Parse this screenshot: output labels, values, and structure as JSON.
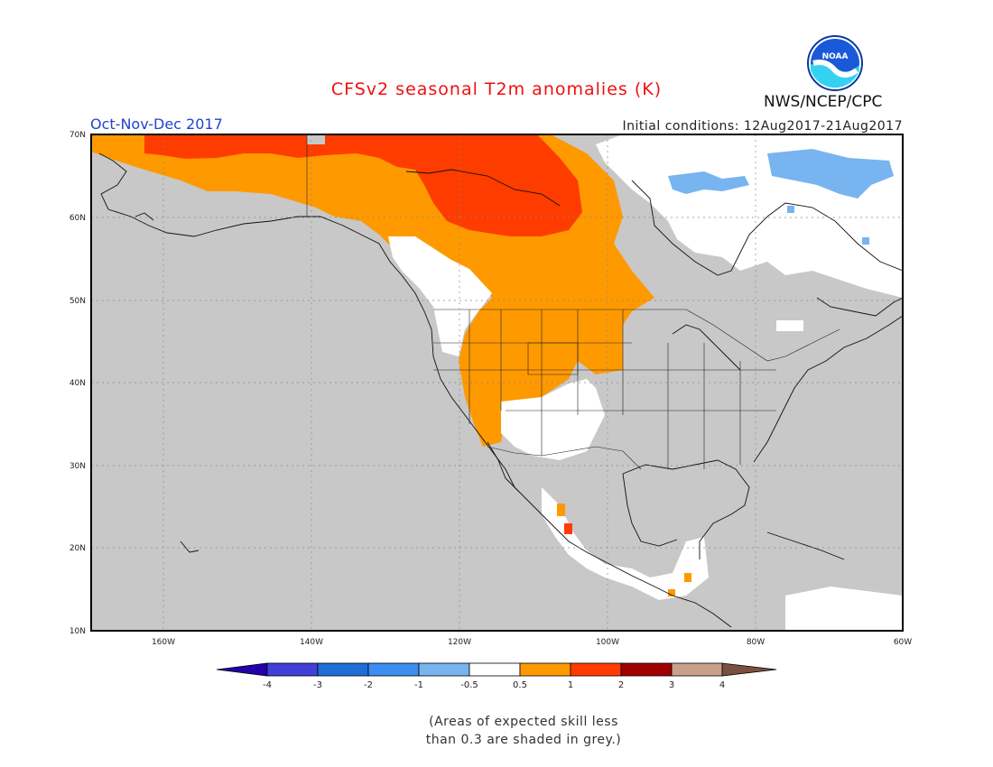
{
  "title": "CFSv2 seasonal T2m anomalies (K)",
  "period": "Oct-Nov-Dec 2017",
  "initial_conditions": "Initial conditions: 12Aug2017-21Aug2017",
  "agency": "NWS/NCEP/CPC",
  "logo_text": "NOAA",
  "axes": {
    "lat_labels": [
      "10N",
      "20N",
      "30N",
      "40N",
      "50N",
      "60N",
      "70N"
    ],
    "lon_labels": [
      "160W",
      "140W",
      "120W",
      "100W",
      "80W",
      "60W"
    ]
  },
  "colorbar": {
    "labels": [
      "-4",
      "-3",
      "-2",
      "-1",
      "-0.5",
      "0.5",
      "1",
      "2",
      "3",
      "4"
    ],
    "colors": [
      "#2200aa",
      "#4040d8",
      "#1f6ed8",
      "#3c8ef0",
      "#78b4f0",
      "#ffffff",
      "#ff9900",
      "#ff3c00",
      "#a00000",
      "#c8a08c",
      "#7a5040"
    ]
  },
  "legend_colors": {
    "low_skill": "#c8c8c8",
    "slight_warm": "#ff9900",
    "warm": "#ff3c00",
    "slight_cool": "#78b4f0",
    "neutral": "#ffffff"
  },
  "note": {
    "line1": "(Areas of expected skill less",
    "line2": "than 0.3 are shaded in grey.)"
  }
}
